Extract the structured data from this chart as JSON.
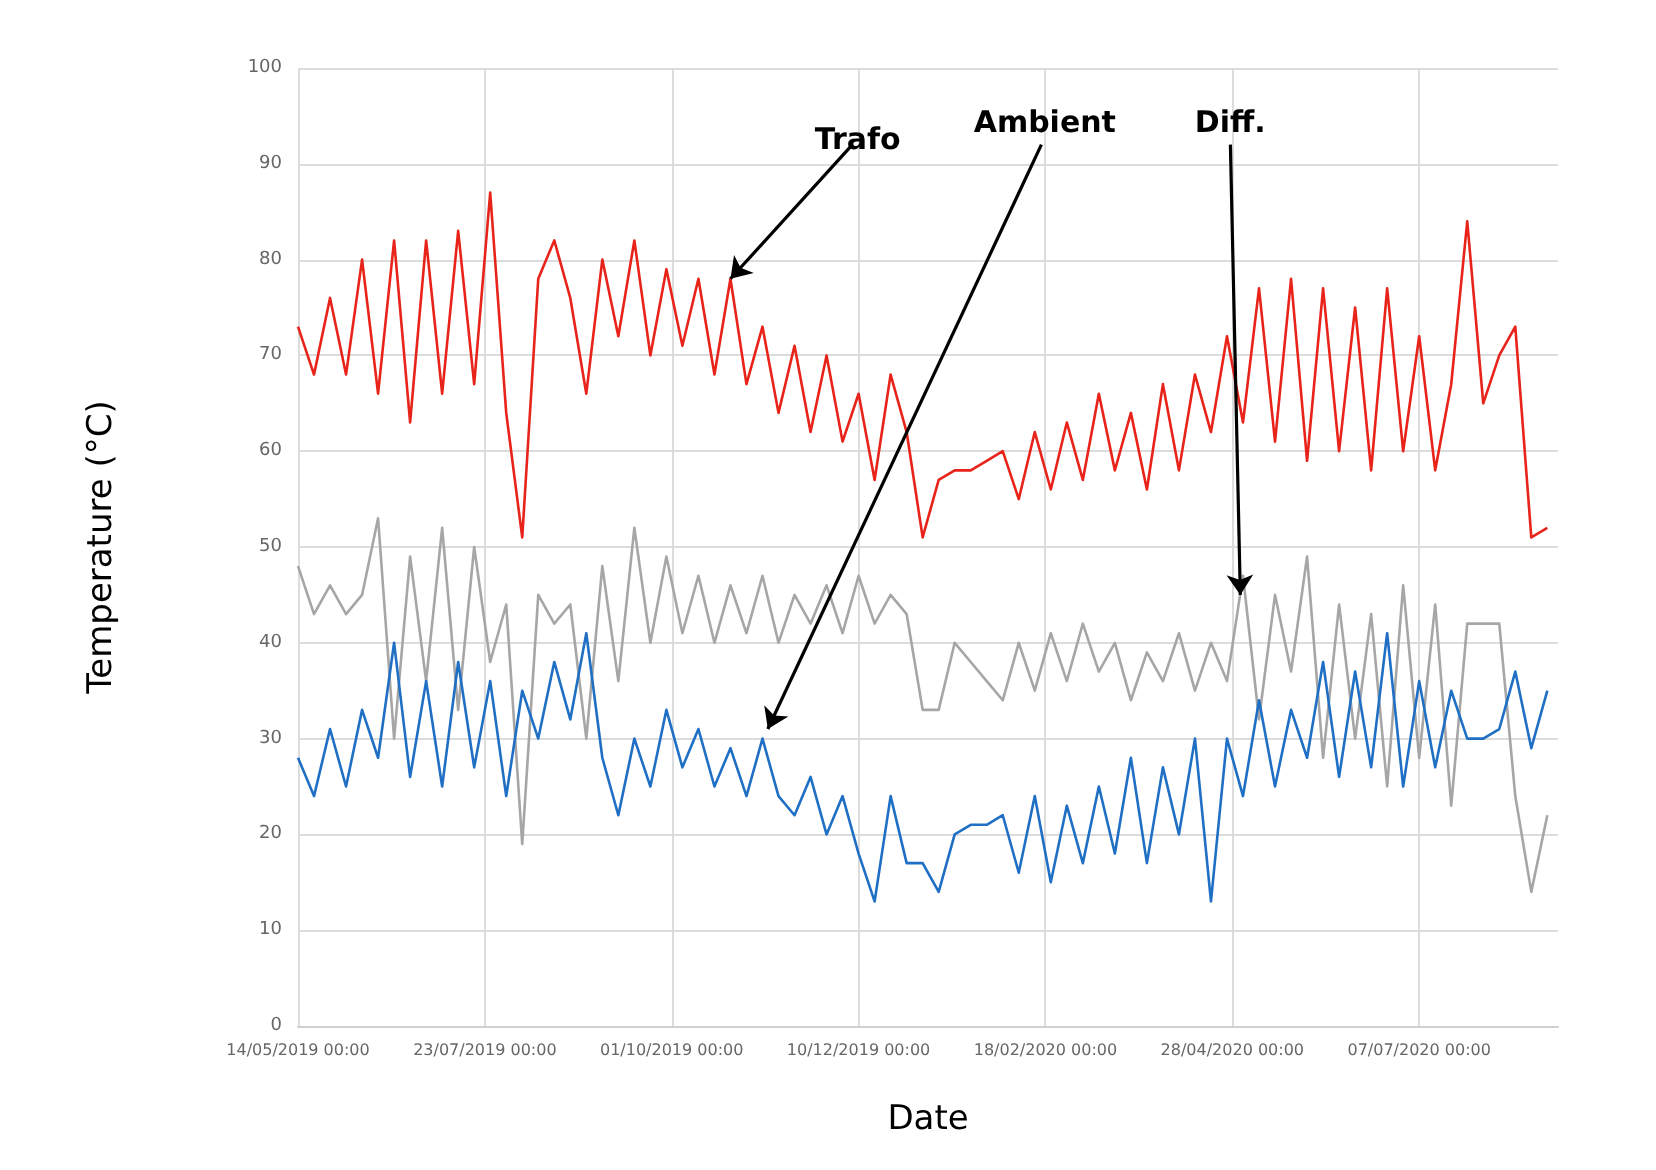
{
  "chart_data": {
    "type": "line",
    "xlabel": "Date",
    "ylabel": "Temperature (°C)",
    "x": [
      "2019-05-14",
      "2019-05-20",
      "2019-05-26",
      "2019-06-01",
      "2019-06-07",
      "2019-06-13",
      "2019-06-19",
      "2019-06-25",
      "2019-07-01",
      "2019-07-07",
      "2019-07-13",
      "2019-07-19",
      "2019-07-25",
      "2019-07-31",
      "2019-08-06",
      "2019-08-12",
      "2019-08-18",
      "2019-08-24",
      "2019-08-30",
      "2019-09-05",
      "2019-09-11",
      "2019-09-17",
      "2019-09-23",
      "2019-09-29",
      "2019-10-05",
      "2019-10-11",
      "2019-10-17",
      "2019-10-23",
      "2019-10-29",
      "2019-11-04",
      "2019-11-10",
      "2019-11-16",
      "2019-11-22",
      "2019-11-28",
      "2019-12-04",
      "2019-12-10",
      "2019-12-16",
      "2019-12-22",
      "2019-12-28",
      "2020-01-03",
      "2020-01-09",
      "2020-01-15",
      "2020-01-21",
      "2020-01-27",
      "2020-02-02",
      "2020-02-08",
      "2020-02-14",
      "2020-02-20",
      "2020-02-26",
      "2020-03-03",
      "2020-03-09",
      "2020-03-15",
      "2020-03-21",
      "2020-03-27",
      "2020-04-02",
      "2020-04-08",
      "2020-04-14",
      "2020-04-20",
      "2020-04-26",
      "2020-05-02",
      "2020-05-08",
      "2020-05-14",
      "2020-05-20",
      "2020-05-26",
      "2020-06-01",
      "2020-06-07",
      "2020-06-13",
      "2020-06-19",
      "2020-06-25",
      "2020-07-01",
      "2020-07-07",
      "2020-07-13",
      "2020-07-19",
      "2020-07-25",
      "2020-07-31",
      "2020-08-06",
      "2020-08-12",
      "2020-08-18",
      "2020-08-24"
    ],
    "series": [
      {
        "color": "#e8231a",
        "values": [
          73,
          68,
          76,
          68,
          80,
          66,
          82,
          63,
          82,
          66,
          83,
          67,
          87,
          64,
          51,
          78,
          82,
          76,
          66,
          80,
          72,
          82,
          70,
          79,
          71,
          78,
          68,
          78,
          67,
          73,
          64,
          71,
          62,
          70,
          61,
          66,
          57,
          68,
          62,
          51,
          57,
          58,
          58,
          59,
          60,
          55,
          62,
          56,
          63,
          57,
          66,
          58,
          64,
          56,
          67,
          58,
          68,
          62,
          72,
          63,
          77,
          61,
          78,
          59,
          77,
          60,
          75,
          58,
          77,
          60,
          72,
          58,
          67,
          84,
          65,
          70,
          73,
          51,
          52
        ]
      },
      {
        "color": "#a6a6a6",
        "values": [
          48,
          43,
          46,
          43,
          45,
          53,
          30,
          49,
          36,
          52,
          33,
          50,
          38,
          44,
          19,
          45,
          42,
          44,
          30,
          48,
          36,
          52,
          40,
          49,
          41,
          47,
          40,
          46,
          41,
          47,
          40,
          45,
          42,
          46,
          41,
          47,
          42,
          45,
          43,
          33,
          33,
          40,
          38,
          36,
          34,
          40,
          35,
          41,
          36,
          42,
          37,
          40,
          34,
          39,
          36,
          41,
          35,
          40,
          36,
          47,
          32,
          45,
          37,
          49,
          28,
          44,
          30,
          43,
          25,
          46,
          28,
          44,
          23,
          42,
          42,
          42,
          24,
          14,
          22
        ]
      },
      {
        "color": "#1f6fc5",
        "values": [
          28,
          24,
          31,
          25,
          33,
          28,
          40,
          26,
          36,
          25,
          38,
          27,
          36,
          24,
          35,
          30,
          38,
          32,
          41,
          28,
          22,
          30,
          25,
          33,
          27,
          31,
          25,
          29,
          24,
          30,
          24,
          22,
          26,
          20,
          24,
          18,
          13,
          24,
          17,
          17,
          14,
          20,
          21,
          21,
          22,
          16,
          24,
          15,
          23,
          17,
          25,
          18,
          28,
          17,
          27,
          20,
          30,
          13,
          30,
          24,
          34,
          25,
          33,
          28,
          38,
          26,
          37,
          27,
          41,
          25,
          36,
          27,
          35,
          30,
          30,
          31,
          37,
          29,
          35
        ]
      }
    ],
    "xlim": [
      "2019-05-14",
      "2020-08-28"
    ],
    "xticks": [
      {
        "value": "2019-05-14",
        "label": "14/05/2019 00:00"
      },
      {
        "value": "2019-07-23",
        "label": "23/07/2019 00:00"
      },
      {
        "value": "2019-10-01",
        "label": "01/10/2019 00:00"
      },
      {
        "value": "2019-12-10",
        "label": "10/12/2019 00:00"
      },
      {
        "value": "2020-02-18",
        "label": "18/02/2020 00:00"
      },
      {
        "value": "2020-04-28",
        "label": "28/04/2020 00:00"
      },
      {
        "value": "2020-07-07",
        "label": "07/07/2020 00:00"
      }
    ],
    "ylim": [
      0,
      100
    ],
    "yticks": [
      0,
      10,
      20,
      30,
      40,
      50,
      60,
      70,
      80,
      90,
      100
    ],
    "grid": true,
    "marker": "none",
    "line_style": "solid",
    "annotations": [
      {
        "text": "Trafo",
        "x": "2019-10-23",
        "y": 78
      },
      {
        "text": "Ambient",
        "x": "2019-11-06",
        "y": 31
      },
      {
        "text": "Diff.",
        "x": "2020-05-01",
        "y": 45
      }
    ]
  }
}
